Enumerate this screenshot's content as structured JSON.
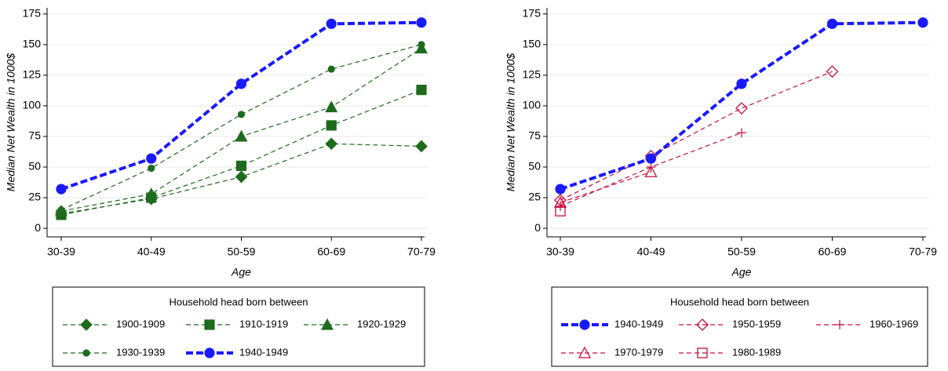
{
  "chart_data": [
    {
      "type": "line",
      "x_label": "Age",
      "y_label": "Median Net Wealth in 1000$",
      "categories": [
        "30-39",
        "40-49",
        "50-59",
        "60-69",
        "70-79"
      ],
      "ylim": [
        -7,
        180
      ],
      "yticks": [
        0,
        25,
        50,
        75,
        100,
        125,
        150,
        175
      ],
      "grid": true,
      "legend_title": "Household head born between",
      "legend": "bottom",
      "series": [
        {
          "name": "1900-1909",
          "color": "#1e6b1e",
          "marker": "diamond",
          "line_style": "dash",
          "values": [
            12,
            24,
            42,
            69,
            67
          ]
        },
        {
          "name": "1910-1919",
          "color": "#1e6b1e",
          "marker": "square",
          "line_style": "dash",
          "values": [
            11,
            25,
            51,
            84,
            113
          ]
        },
        {
          "name": "1920-1929",
          "color": "#1e6b1e",
          "marker": "triangle",
          "line_style": "dash",
          "values": [
            14,
            28,
            75,
            99,
            147
          ]
        },
        {
          "name": "1930-1939",
          "color": "#1e6b1e",
          "marker": "dot",
          "line_style": "dash",
          "values": [
            15,
            49,
            93,
            130,
            150
          ]
        },
        {
          "name": "1940-1949",
          "color": "#1a1aff",
          "marker": "circle",
          "line_style": "bold-dash",
          "values": [
            32,
            57,
            118,
            167,
            168
          ]
        }
      ]
    },
    {
      "type": "line",
      "x_label": "Age",
      "y_label": "Median Net Wealth in 1000$",
      "categories": [
        "30-39",
        "40-49",
        "50-59",
        "60-69",
        "70-79"
      ],
      "ylim": [
        -7,
        180
      ],
      "yticks": [
        0,
        25,
        50,
        75,
        100,
        125,
        150,
        175
      ],
      "grid": true,
      "legend_title": "Household head born between",
      "legend": "bottom",
      "series": [
        {
          "name": "1940-1949",
          "color": "#1a1aff",
          "marker": "circle",
          "line_style": "bold-dash",
          "values": [
            32,
            57,
            118,
            167,
            168
          ]
        },
        {
          "name": "1950-1959",
          "color": "#c8103c",
          "marker": "hollow-diamond",
          "line_style": "dash",
          "values": [
            23,
            59,
            98,
            128,
            null
          ]
        },
        {
          "name": "1960-1969",
          "color": "#c8103c",
          "marker": "plus",
          "line_style": "dash",
          "values": [
            18,
            50,
            78,
            null,
            null
          ]
        },
        {
          "name": "1970-1979",
          "color": "#c8103c",
          "marker": "hollow-triangle",
          "line_style": "dash",
          "values": [
            21,
            46,
            null,
            null,
            null
          ]
        },
        {
          "name": "1980-1989",
          "color": "#c8103c",
          "marker": "hollow-square",
          "line_style": "dash",
          "values": [
            14,
            null,
            null,
            null,
            null
          ]
        }
      ]
    }
  ]
}
